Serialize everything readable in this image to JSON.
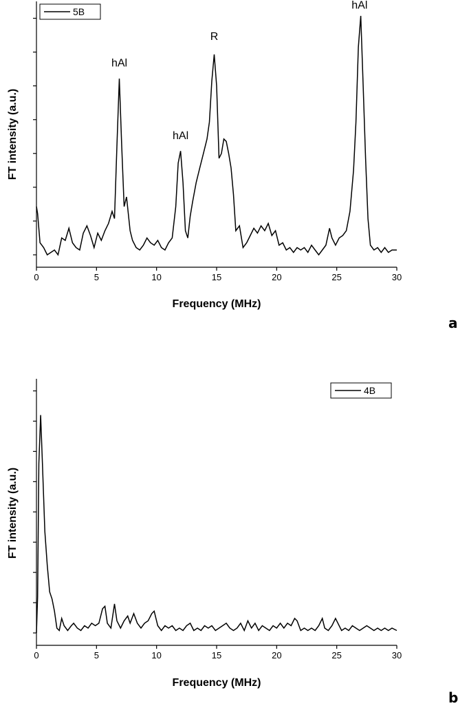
{
  "chart_data": [
    {
      "type": "line",
      "panel_label": "a",
      "xlabel": "Frequency (MHz)",
      "ylabel": "FT intensity (a.u.)",
      "xlim": [
        0,
        30
      ],
      "ylim": [
        0,
        1.05
      ],
      "xticks": [
        0,
        5,
        10,
        15,
        20,
        25,
        30
      ],
      "y_ticks_unlabeled": [
        0,
        0.14,
        0.28,
        0.42,
        0.56,
        0.7,
        0.84,
        0.98
      ],
      "legend": {
        "placement": "top-left",
        "entries": [
          "5B"
        ]
      },
      "annotations": [
        {
          "text": "hAl",
          "x": 6.9,
          "y": 0.78
        },
        {
          "text": "hAl",
          "x": 12.0,
          "y": 0.48
        },
        {
          "text": "R",
          "x": 14.8,
          "y": 0.89
        },
        {
          "text": "hAl",
          "x": 26.9,
          "y": 1.02
        }
      ],
      "series": [
        {
          "name": "5B",
          "points": [
            [
              0,
              0.2
            ],
            [
              0.1,
              0.17
            ],
            [
              0.3,
              0.05
            ],
            [
              0.6,
              0.03
            ],
            [
              0.9,
              0.0
            ],
            [
              1.2,
              0.01
            ],
            [
              1.5,
              0.02
            ],
            [
              1.8,
              0.0
            ],
            [
              2.1,
              0.07
            ],
            [
              2.4,
              0.06
            ],
            [
              2.7,
              0.11
            ],
            [
              3.0,
              0.05
            ],
            [
              3.3,
              0.03
            ],
            [
              3.6,
              0.02
            ],
            [
              3.9,
              0.09
            ],
            [
              4.2,
              0.12
            ],
            [
              4.5,
              0.08
            ],
            [
              4.8,
              0.03
            ],
            [
              5.1,
              0.09
            ],
            [
              5.4,
              0.06
            ],
            [
              5.7,
              0.1
            ],
            [
              6.0,
              0.13
            ],
            [
              6.3,
              0.18
            ],
            [
              6.5,
              0.15
            ],
            [
              6.7,
              0.45
            ],
            [
              6.9,
              0.73
            ],
            [
              7.1,
              0.45
            ],
            [
              7.3,
              0.2
            ],
            [
              7.5,
              0.24
            ],
            [
              7.8,
              0.1
            ],
            [
              8.0,
              0.06
            ],
            [
              8.3,
              0.03
            ],
            [
              8.6,
              0.02
            ],
            [
              8.9,
              0.04
            ],
            [
              9.2,
              0.07
            ],
            [
              9.5,
              0.05
            ],
            [
              9.8,
              0.04
            ],
            [
              10.1,
              0.06
            ],
            [
              10.4,
              0.03
            ],
            [
              10.7,
              0.02
            ],
            [
              11.0,
              0.05
            ],
            [
              11.3,
              0.07
            ],
            [
              11.6,
              0.2
            ],
            [
              11.8,
              0.38
            ],
            [
              12.0,
              0.43
            ],
            [
              12.2,
              0.3
            ],
            [
              12.4,
              0.1
            ],
            [
              12.6,
              0.07
            ],
            [
              12.8,
              0.16
            ],
            [
              13.0,
              0.22
            ],
            [
              13.3,
              0.3
            ],
            [
              13.6,
              0.36
            ],
            [
              13.9,
              0.42
            ],
            [
              14.2,
              0.48
            ],
            [
              14.4,
              0.55
            ],
            [
              14.6,
              0.72
            ],
            [
              14.8,
              0.83
            ],
            [
              15.0,
              0.7
            ],
            [
              15.2,
              0.4
            ],
            [
              15.4,
              0.42
            ],
            [
              15.6,
              0.48
            ],
            [
              15.8,
              0.47
            ],
            [
              16.0,
              0.42
            ],
            [
              16.2,
              0.36
            ],
            [
              16.4,
              0.25
            ],
            [
              16.6,
              0.1
            ],
            [
              16.9,
              0.12
            ],
            [
              17.2,
              0.03
            ],
            [
              17.5,
              0.05
            ],
            [
              17.8,
              0.08
            ],
            [
              18.1,
              0.11
            ],
            [
              18.4,
              0.09
            ],
            [
              18.7,
              0.12
            ],
            [
              19.0,
              0.1
            ],
            [
              19.3,
              0.13
            ],
            [
              19.6,
              0.08
            ],
            [
              19.9,
              0.1
            ],
            [
              20.2,
              0.04
            ],
            [
              20.5,
              0.05
            ],
            [
              20.8,
              0.02
            ],
            [
              21.1,
              0.03
            ],
            [
              21.4,
              0.01
            ],
            [
              21.7,
              0.03
            ],
            [
              22.0,
              0.02
            ],
            [
              22.3,
              0.03
            ],
            [
              22.6,
              0.01
            ],
            [
              22.9,
              0.04
            ],
            [
              23.2,
              0.02
            ],
            [
              23.5,
              0.0
            ],
            [
              23.8,
              0.02
            ],
            [
              24.1,
              0.04
            ],
            [
              24.4,
              0.11
            ],
            [
              24.6,
              0.07
            ],
            [
              24.9,
              0.04
            ],
            [
              25.2,
              0.07
            ],
            [
              25.5,
              0.08
            ],
            [
              25.8,
              0.1
            ],
            [
              26.1,
              0.18
            ],
            [
              26.4,
              0.35
            ],
            [
              26.6,
              0.55
            ],
            [
              26.8,
              0.86
            ],
            [
              27.0,
              0.99
            ],
            [
              27.2,
              0.7
            ],
            [
              27.4,
              0.4
            ],
            [
              27.6,
              0.15
            ],
            [
              27.8,
              0.04
            ],
            [
              28.1,
              0.02
            ],
            [
              28.4,
              0.03
            ],
            [
              28.7,
              0.01
            ],
            [
              29.0,
              0.03
            ],
            [
              29.3,
              0.01
            ],
            [
              29.6,
              0.02
            ],
            [
              30.0,
              0.02
            ]
          ]
        }
      ]
    },
    {
      "type": "line",
      "panel_label": "b",
      "xlabel": "Frequency (MHz)",
      "ylabel": "FT intensity (a.u.)",
      "xlim": [
        0,
        30
      ],
      "ylim": [
        0,
        1.05
      ],
      "xticks": [
        0,
        5,
        10,
        15,
        20,
        25,
        30
      ],
      "y_ticks_unlabeled": [
        0,
        0.125,
        0.25,
        0.375,
        0.5,
        0.625,
        0.75,
        0.875,
        1.0
      ],
      "legend": {
        "placement": "top-right",
        "entries": [
          "4B"
        ]
      },
      "annotations": [],
      "series": [
        {
          "name": "4B",
          "points": [
            [
              0,
              0.0
            ],
            [
              0.1,
              0.15
            ],
            [
              0.2,
              0.7
            ],
            [
              0.35,
              0.9
            ],
            [
              0.5,
              0.7
            ],
            [
              0.7,
              0.42
            ],
            [
              0.9,
              0.28
            ],
            [
              1.1,
              0.17
            ],
            [
              1.3,
              0.14
            ],
            [
              1.5,
              0.09
            ],
            [
              1.7,
              0.02
            ],
            [
              1.9,
              0.01
            ],
            [
              2.1,
              0.06
            ],
            [
              2.3,
              0.03
            ],
            [
              2.6,
              0.01
            ],
            [
              2.9,
              0.03
            ],
            [
              3.1,
              0.04
            ],
            [
              3.4,
              0.02
            ],
            [
              3.7,
              0.01
            ],
            [
              4.0,
              0.03
            ],
            [
              4.3,
              0.02
            ],
            [
              4.6,
              0.04
            ],
            [
              4.9,
              0.03
            ],
            [
              5.2,
              0.04
            ],
            [
              5.5,
              0.1
            ],
            [
              5.7,
              0.11
            ],
            [
              5.9,
              0.04
            ],
            [
              6.2,
              0.02
            ],
            [
              6.5,
              0.12
            ],
            [
              6.7,
              0.05
            ],
            [
              7.0,
              0.02
            ],
            [
              7.3,
              0.05
            ],
            [
              7.6,
              0.07
            ],
            [
              7.8,
              0.04
            ],
            [
              8.1,
              0.08
            ],
            [
              8.4,
              0.04
            ],
            [
              8.7,
              0.02
            ],
            [
              9.0,
              0.04
            ],
            [
              9.3,
              0.05
            ],
            [
              9.6,
              0.08
            ],
            [
              9.8,
              0.09
            ],
            [
              10.1,
              0.03
            ],
            [
              10.4,
              0.01
            ],
            [
              10.7,
              0.03
            ],
            [
              11.0,
              0.02
            ],
            [
              11.3,
              0.03
            ],
            [
              11.6,
              0.01
            ],
            [
              11.9,
              0.02
            ],
            [
              12.2,
              0.01
            ],
            [
              12.5,
              0.03
            ],
            [
              12.8,
              0.04
            ],
            [
              13.1,
              0.01
            ],
            [
              13.4,
              0.02
            ],
            [
              13.7,
              0.01
            ],
            [
              14.0,
              0.03
            ],
            [
              14.3,
              0.02
            ],
            [
              14.6,
              0.03
            ],
            [
              14.9,
              0.01
            ],
            [
              15.2,
              0.02
            ],
            [
              15.5,
              0.03
            ],
            [
              15.8,
              0.04
            ],
            [
              16.1,
              0.02
            ],
            [
              16.4,
              0.01
            ],
            [
              16.7,
              0.02
            ],
            [
              17.0,
              0.04
            ],
            [
              17.3,
              0.01
            ],
            [
              17.6,
              0.05
            ],
            [
              17.9,
              0.02
            ],
            [
              18.2,
              0.04
            ],
            [
              18.5,
              0.01
            ],
            [
              18.8,
              0.03
            ],
            [
              19.1,
              0.02
            ],
            [
              19.4,
              0.01
            ],
            [
              19.7,
              0.03
            ],
            [
              20.0,
              0.02
            ],
            [
              20.3,
              0.04
            ],
            [
              20.6,
              0.02
            ],
            [
              20.9,
              0.04
            ],
            [
              21.2,
              0.03
            ],
            [
              21.5,
              0.06
            ],
            [
              21.7,
              0.05
            ],
            [
              22.0,
              0.01
            ],
            [
              22.3,
              0.02
            ],
            [
              22.6,
              0.01
            ],
            [
              22.9,
              0.02
            ],
            [
              23.2,
              0.01
            ],
            [
              23.5,
              0.03
            ],
            [
              23.8,
              0.06
            ],
            [
              24.0,
              0.02
            ],
            [
              24.3,
              0.01
            ],
            [
              24.6,
              0.03
            ],
            [
              24.9,
              0.06
            ],
            [
              25.1,
              0.04
            ],
            [
              25.4,
              0.01
            ],
            [
              25.7,
              0.02
            ],
            [
              26.0,
              0.01
            ],
            [
              26.3,
              0.03
            ],
            [
              26.6,
              0.02
            ],
            [
              26.9,
              0.01
            ],
            [
              27.2,
              0.02
            ],
            [
              27.5,
              0.03
            ],
            [
              27.8,
              0.02
            ],
            [
              28.1,
              0.01
            ],
            [
              28.4,
              0.02
            ],
            [
              28.7,
              0.01
            ],
            [
              29.0,
              0.02
            ],
            [
              29.3,
              0.01
            ],
            [
              29.6,
              0.02
            ],
            [
              30.0,
              0.01
            ]
          ]
        }
      ]
    }
  ]
}
